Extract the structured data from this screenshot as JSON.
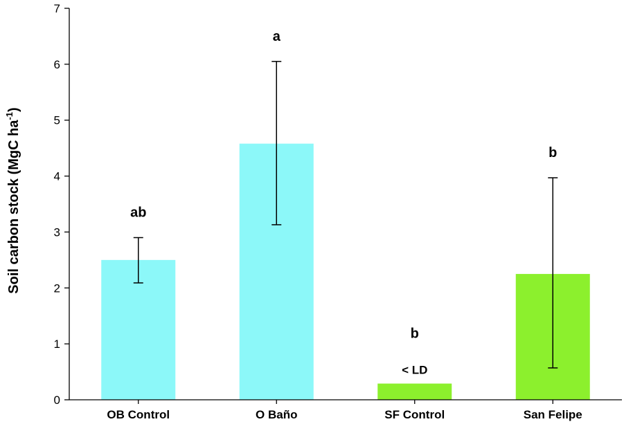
{
  "chart_data": {
    "type": "bar",
    "categories": [
      "OB Control",
      "O Baño",
      "SF Control",
      "San Felipe"
    ],
    "values": [
      2.5,
      4.58,
      0.29,
      2.25
    ],
    "error_low": [
      2.09,
      3.13,
      null,
      0.57
    ],
    "error_high": [
      2.9,
      6.05,
      null,
      3.97
    ],
    "bar_colors": [
      "#8cf8f9",
      "#8cf8f9",
      "#8cf02d",
      "#8cf02d"
    ],
    "significance": [
      "ab",
      "a",
      "b",
      "b"
    ],
    "notes": [
      "",
      "",
      "< LD",
      ""
    ],
    "ylabel": "Soil carbon stock (MgC ha",
    "ylabel_sup": "-1",
    "ylabel_close": ")",
    "ylim": [
      0,
      7
    ],
    "yticks": [
      "0",
      "1",
      "2",
      "3",
      "4",
      "5",
      "6",
      "7"
    ],
    "grid": false,
    "legend": "none"
  }
}
